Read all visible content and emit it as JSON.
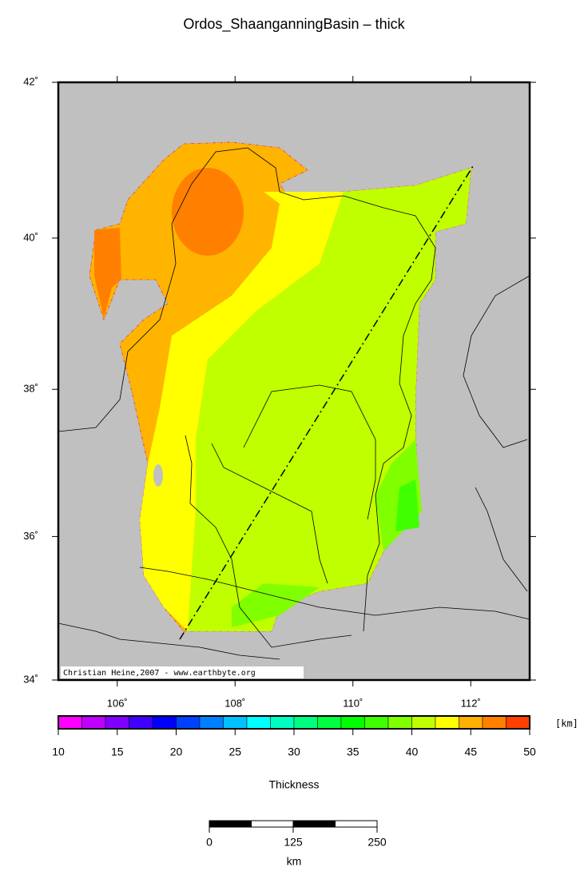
{
  "title": "Ordos_ShaanganningBasin – thick",
  "map": {
    "lon_range": [
      105,
      113
    ],
    "lat_range": [
      34,
      42
    ],
    "lon_ticks": [
      {
        "value": 106,
        "label": "106˚"
      },
      {
        "value": 108,
        "label": "108˚"
      },
      {
        "value": 110,
        "label": "110˚"
      },
      {
        "value": 112,
        "label": "112˚"
      }
    ],
    "lat_ticks": [
      {
        "value": 34,
        "label": "34˚"
      },
      {
        "value": 36,
        "label": "36˚"
      },
      {
        "value": 38,
        "label": "38˚"
      },
      {
        "value": 40,
        "label": "40˚"
      },
      {
        "value": 42,
        "label": "42˚"
      }
    ],
    "credit": "Christian Heine,2007 - www.earthbyte.org"
  },
  "colorbar": {
    "range": [
      10,
      50
    ],
    "levels": [
      10,
      12,
      14,
      16,
      18,
      20,
      22,
      24,
      26,
      28,
      30,
      32,
      34,
      36,
      38,
      40,
      42,
      44,
      46,
      48,
      50
    ],
    "colors": [
      "#ff00ff",
      "#c000ff",
      "#8000ff",
      "#4000ff",
      "#0000ff",
      "#0040ff",
      "#0080ff",
      "#00c0ff",
      "#00ffff",
      "#00ffc0",
      "#00ff80",
      "#00ff40",
      "#00ff00",
      "#40ff00",
      "#80ff00",
      "#c0ff00",
      "#ffff00",
      "#ffb000",
      "#ff8000",
      "#ff4000"
    ],
    "ticks": [
      10,
      15,
      20,
      25,
      30,
      35,
      40,
      45,
      50
    ],
    "unit": "[km]",
    "label": "Thickness"
  },
  "scale_bar": {
    "range": [
      0,
      250
    ],
    "ticks": [
      0,
      125,
      250
    ],
    "unit": "km"
  }
}
